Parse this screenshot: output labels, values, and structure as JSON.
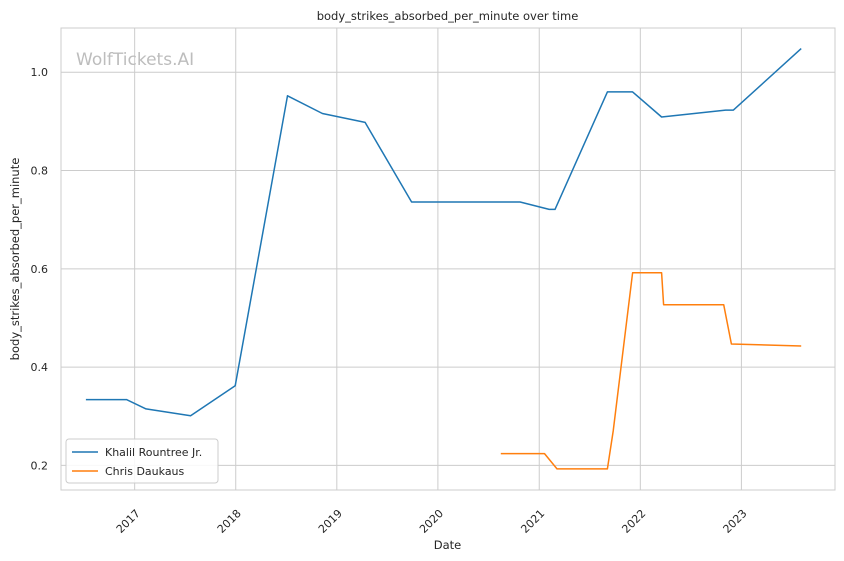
{
  "chart_data": {
    "type": "line",
    "title": "body_strikes_absorbed_per_minute over time",
    "xlabel": "Date",
    "ylabel": "body_strikes_absorbed_per_minute",
    "watermark": "WolfTickets.AI",
    "xlim": [
      "2016-04-10",
      "2023-12-05"
    ],
    "ylim": [
      0.15,
      1.09
    ],
    "xticks": [
      "2017",
      "2018",
      "2019",
      "2020",
      "2021",
      "2022",
      "2023"
    ],
    "xtick_dates": [
      "2017-01-01",
      "2018-01-01",
      "2019-01-01",
      "2020-01-01",
      "2021-01-01",
      "2022-01-01",
      "2023-01-01"
    ],
    "yticks": [
      0.2,
      0.4,
      0.6,
      0.8,
      1.0
    ],
    "ytick_labels": [
      "0.2",
      "0.4",
      "0.6",
      "0.8",
      "1.0"
    ],
    "grid": true,
    "legend_position": "lower-left",
    "series": [
      {
        "name": "Khalil Rountree Jr.",
        "color": "#1f77b4",
        "points": [
          [
            "2016-07-09",
            0.334
          ],
          [
            "2016-12-03",
            0.334
          ],
          [
            "2017-02-11",
            0.315
          ],
          [
            "2017-07-22",
            0.301
          ],
          [
            "2017-12-30",
            0.362
          ],
          [
            "2018-07-07",
            0.952
          ],
          [
            "2018-11-10",
            0.916
          ],
          [
            "2019-04-13",
            0.898
          ],
          [
            "2019-09-28",
            0.736
          ],
          [
            "2020-10-24",
            0.736
          ],
          [
            "2021-02-06",
            0.721
          ],
          [
            "2021-02-27",
            0.721
          ],
          [
            "2021-09-04",
            0.96
          ],
          [
            "2021-12-04",
            0.96
          ],
          [
            "2022-03-19",
            0.909
          ],
          [
            "2022-11-05",
            0.923
          ],
          [
            "2022-12-03",
            0.923
          ],
          [
            "2023-08-05",
            1.048
          ]
        ]
      },
      {
        "name": "Chris Daukaus",
        "color": "#ff7f0e",
        "points": [
          [
            "2020-08-15",
            0.224
          ],
          [
            "2021-01-20",
            0.224
          ],
          [
            "2021-03-06",
            0.193
          ],
          [
            "2021-09-04",
            0.193
          ],
          [
            "2021-09-25",
            0.27
          ],
          [
            "2021-12-04",
            0.592
          ],
          [
            "2022-03-19",
            0.592
          ],
          [
            "2022-03-26",
            0.527
          ],
          [
            "2022-10-29",
            0.527
          ],
          [
            "2022-11-26",
            0.447
          ],
          [
            "2023-08-05",
            0.443
          ]
        ]
      }
    ]
  }
}
